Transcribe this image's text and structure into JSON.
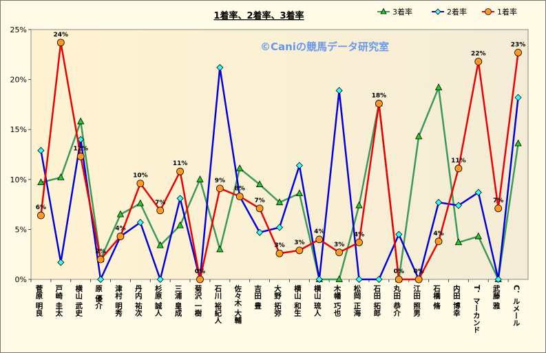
{
  "chart_data": {
    "type": "line",
    "title": "1着率、2着率、3着率",
    "watermark": "©Caniの競馬データ研究室",
    "ylim": [
      0,
      25
    ],
    "y_ticks": [
      "0%",
      "5%",
      "10%",
      "15%",
      "20%",
      "25%"
    ],
    "categories": [
      "菅原 明良",
      "戸崎 圭太",
      "横山 武史",
      "原 優介",
      "津村 明秀",
      "丹内 祐次",
      "杉原 誠人",
      "三浦 皇成",
      "菊沢 一樹",
      "石川 裕紀人",
      "佐々木 大輔",
      "吉田 豊",
      "大野 拓弥",
      "横山 和生",
      "横山 琉人",
      "木幡 巧也",
      "松岡 正海",
      "石田 拓郎",
      "丸田 恭介",
      "江田 照男",
      "石橋 脩",
      "内田 博幸",
      "T．マーカンド",
      "武藤 雅",
      "C．ルメール"
    ],
    "series": [
      {
        "name": "3着率",
        "color": "#3a9a5a",
        "marker": "triangle",
        "marker_fill": "#22cc22",
        "values": [
          9.7,
          10.2,
          15.8,
          2.0,
          6.5,
          7.6,
          3.4,
          5.4,
          10.0,
          3.0,
          11.1,
          9.5,
          7.7,
          8.6,
          0.0,
          0.0,
          7.4,
          17.6,
          0.0,
          14.3,
          19.2,
          3.7,
          4.3,
          0.0,
          13.6
        ]
      },
      {
        "name": "2着率",
        "color": "#0000dd",
        "marker": "diamond",
        "marker_fill": "#33ffff",
        "values": [
          12.9,
          1.7,
          14.0,
          0.0,
          4.3,
          5.7,
          0.0,
          8.1,
          0.0,
          21.2,
          8.3,
          4.7,
          5.2,
          11.4,
          0.0,
          18.9,
          0.0,
          0.0,
          4.5,
          0.0,
          7.7,
          7.4,
          8.7,
          0.0,
          18.2
        ]
      },
      {
        "name": "1着率",
        "color": "#ee0000",
        "marker": "circle",
        "marker_fill": "#ff9922",
        "values": [
          6.4,
          23.7,
          12.3,
          2.0,
          4.3,
          9.6,
          6.9,
          10.8,
          0.0,
          9.1,
          8.3,
          7.1,
          2.6,
          2.9,
          4.0,
          2.7,
          3.7,
          17.6,
          0.0,
          0.0,
          3.8,
          11.1,
          21.8,
          7.1,
          22.7
        ]
      }
    ],
    "data_labels_series": "1着率",
    "data_labels": [
      "6%",
      "24%",
      "12%",
      "2%",
      "4%",
      "10%",
      "7%",
      "11%",
      "0%",
      "9%",
      "8%",
      "7%",
      "3%",
      "3%",
      "4%",
      "3%",
      "4%",
      "18%",
      "0%",
      "0%",
      "4%",
      "11%",
      "22%",
      "7%",
      "23%"
    ],
    "legend_position": "top-right",
    "grid": false
  }
}
